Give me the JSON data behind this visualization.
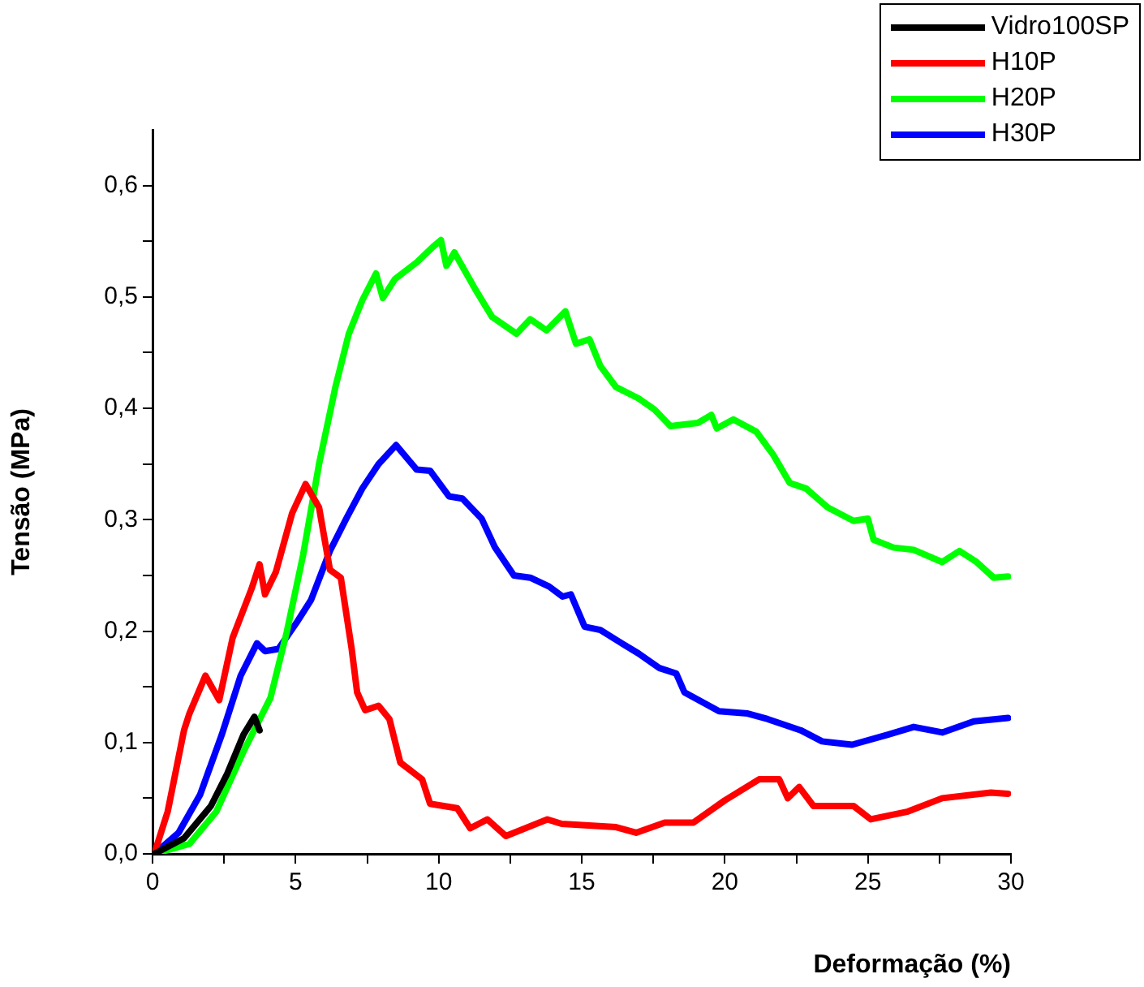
{
  "chart_data": {
    "type": "line",
    "xlabel": "Deformação (%)",
    "ylabel": "Tensão (MPa)",
    "xlim": [
      0,
      30
    ],
    "ylim": [
      0,
      0.65
    ],
    "xticks": [
      0,
      {
        "value": 2.5,
        "label": null
      },
      5,
      {
        "value": 7.5,
        "label": null
      },
      10,
      {
        "value": 12.5,
        "label": null
      },
      15,
      {
        "value": 17.5,
        "label": null
      },
      20,
      {
        "value": 22.5,
        "label": null
      },
      25,
      {
        "value": 27.5,
        "label": null
      },
      30
    ],
    "yticks": [
      {
        "value": 0,
        "label": "0,0"
      },
      {
        "value": 0.05,
        "label": null
      },
      {
        "value": 0.1,
        "label": "0,1"
      },
      {
        "value": 0.15,
        "label": null
      },
      {
        "value": 0.2,
        "label": "0,2"
      },
      {
        "value": 0.25,
        "label": null
      },
      {
        "value": 0.3,
        "label": "0,3"
      },
      {
        "value": 0.35,
        "label": null
      },
      {
        "value": 0.4,
        "label": "0,4"
      },
      {
        "value": 0.45,
        "label": null
      },
      {
        "value": 0.5,
        "label": "0,5"
      },
      {
        "value": 0.55,
        "label": null
      },
      {
        "value": 0.6,
        "label": "0,6"
      }
    ],
    "grid": false,
    "legend": "top right",
    "marker": "none",
    "line_style": "solid",
    "series": [
      {
        "name": "Vidro100SP",
        "color": "#000000",
        "x": [
          0.06,
          1.1,
          2.04,
          2.61,
          3.18,
          3.56,
          3.74
        ],
        "values": [
          0,
          0.014,
          0.043,
          0.072,
          0.107,
          0.123,
          0.111
        ]
      },
      {
        "name": "H10P",
        "color": "#ff0000",
        "x": [
          0.06,
          0.53,
          1.1,
          1.29,
          1.85,
          2.33,
          2.8,
          3.46,
          3.74,
          3.93,
          4.31,
          4.88,
          5.35,
          5.82,
          6.2,
          6.58,
          6.96,
          7.15,
          7.43,
          7.9,
          8.28,
          8.66,
          9.42,
          9.7,
          10.65,
          11.1,
          11.7,
          12.35,
          13.8,
          14.3,
          16.2,
          16.9,
          17.9,
          18.9,
          20.0,
          21.2,
          21.9,
          22.2,
          22.6,
          23.1,
          24.5,
          25.1,
          26.4,
          27.6,
          29.3,
          29.9
        ],
        "values": [
          0,
          0.038,
          0.111,
          0.126,
          0.16,
          0.138,
          0.194,
          0.238,
          0.26,
          0.233,
          0.253,
          0.306,
          0.332,
          0.311,
          0.255,
          0.248,
          0.184,
          0.145,
          0.129,
          0.133,
          0.121,
          0.082,
          0.067,
          0.045,
          0.041,
          0.023,
          0.031,
          0.016,
          0.031,
          0.027,
          0.024,
          0.019,
          0.028,
          0.028,
          0.048,
          0.067,
          0.067,
          0.05,
          0.06,
          0.043,
          0.043,
          0.031,
          0.038,
          0.05,
          0.055,
          0.054
        ]
      },
      {
        "name": "H20P",
        "color": "#00ff00",
        "x": [
          0.06,
          1.29,
          2.23,
          3.18,
          4.12,
          4.69,
          5.26,
          5.82,
          6.39,
          6.86,
          7.33,
          7.81,
          8.05,
          8.47,
          9.23,
          9.8,
          10.08,
          10.27,
          10.55,
          11.3,
          11.87,
          12.72,
          13.2,
          13.77,
          14.43,
          14.8,
          15.27,
          15.65,
          16.2,
          16.98,
          17.54,
          18.1,
          19.06,
          19.53,
          19.72,
          20.3,
          21.1,
          21.7,
          22.27,
          22.84,
          23.6,
          24.5,
          25.0,
          25.2,
          25.9,
          26.6,
          27.6,
          28.2,
          28.8,
          29.4,
          29.9
        ],
        "values": [
          0,
          0.009,
          0.038,
          0.092,
          0.14,
          0.199,
          0.268,
          0.35,
          0.419,
          0.467,
          0.497,
          0.521,
          0.499,
          0.516,
          0.531,
          0.545,
          0.551,
          0.528,
          0.54,
          0.506,
          0.482,
          0.467,
          0.48,
          0.47,
          0.487,
          0.458,
          0.462,
          0.438,
          0.419,
          0.409,
          0.399,
          0.384,
          0.387,
          0.394,
          0.382,
          0.39,
          0.379,
          0.358,
          0.333,
          0.328,
          0.311,
          0.299,
          0.301,
          0.282,
          0.275,
          0.273,
          0.262,
          0.272,
          0.262,
          0.248,
          0.249
        ]
      },
      {
        "name": "H30P",
        "color": "#0000ff",
        "x": [
          0.06,
          0.91,
          1.66,
          2.42,
          3.08,
          3.65,
          3.93,
          4.4,
          5.07,
          5.54,
          6.2,
          6.77,
          7.33,
          7.9,
          8.51,
          9.23,
          9.7,
          10.36,
          10.83,
          11.5,
          11.97,
          12.63,
          13.2,
          13.86,
          14.33,
          14.62,
          15.1,
          15.65,
          16.4,
          16.98,
          17.7,
          18.3,
          18.59,
          19.8,
          20.8,
          21.5,
          22.65,
          23.4,
          24.45,
          25.7,
          26.6,
          27.6,
          28.7,
          29.9
        ],
        "values": [
          0,
          0.019,
          0.053,
          0.107,
          0.16,
          0.189,
          0.182,
          0.184,
          0.209,
          0.228,
          0.272,
          0.301,
          0.328,
          0.35,
          0.367,
          0.345,
          0.344,
          0.321,
          0.319,
          0.301,
          0.275,
          0.25,
          0.248,
          0.24,
          0.231,
          0.233,
          0.204,
          0.201,
          0.189,
          0.18,
          0.167,
          0.162,
          0.145,
          0.128,
          0.126,
          0.121,
          0.111,
          0.101,
          0.098,
          0.107,
          0.114,
          0.109,
          0.119,
          0.122
        ]
      }
    ]
  }
}
